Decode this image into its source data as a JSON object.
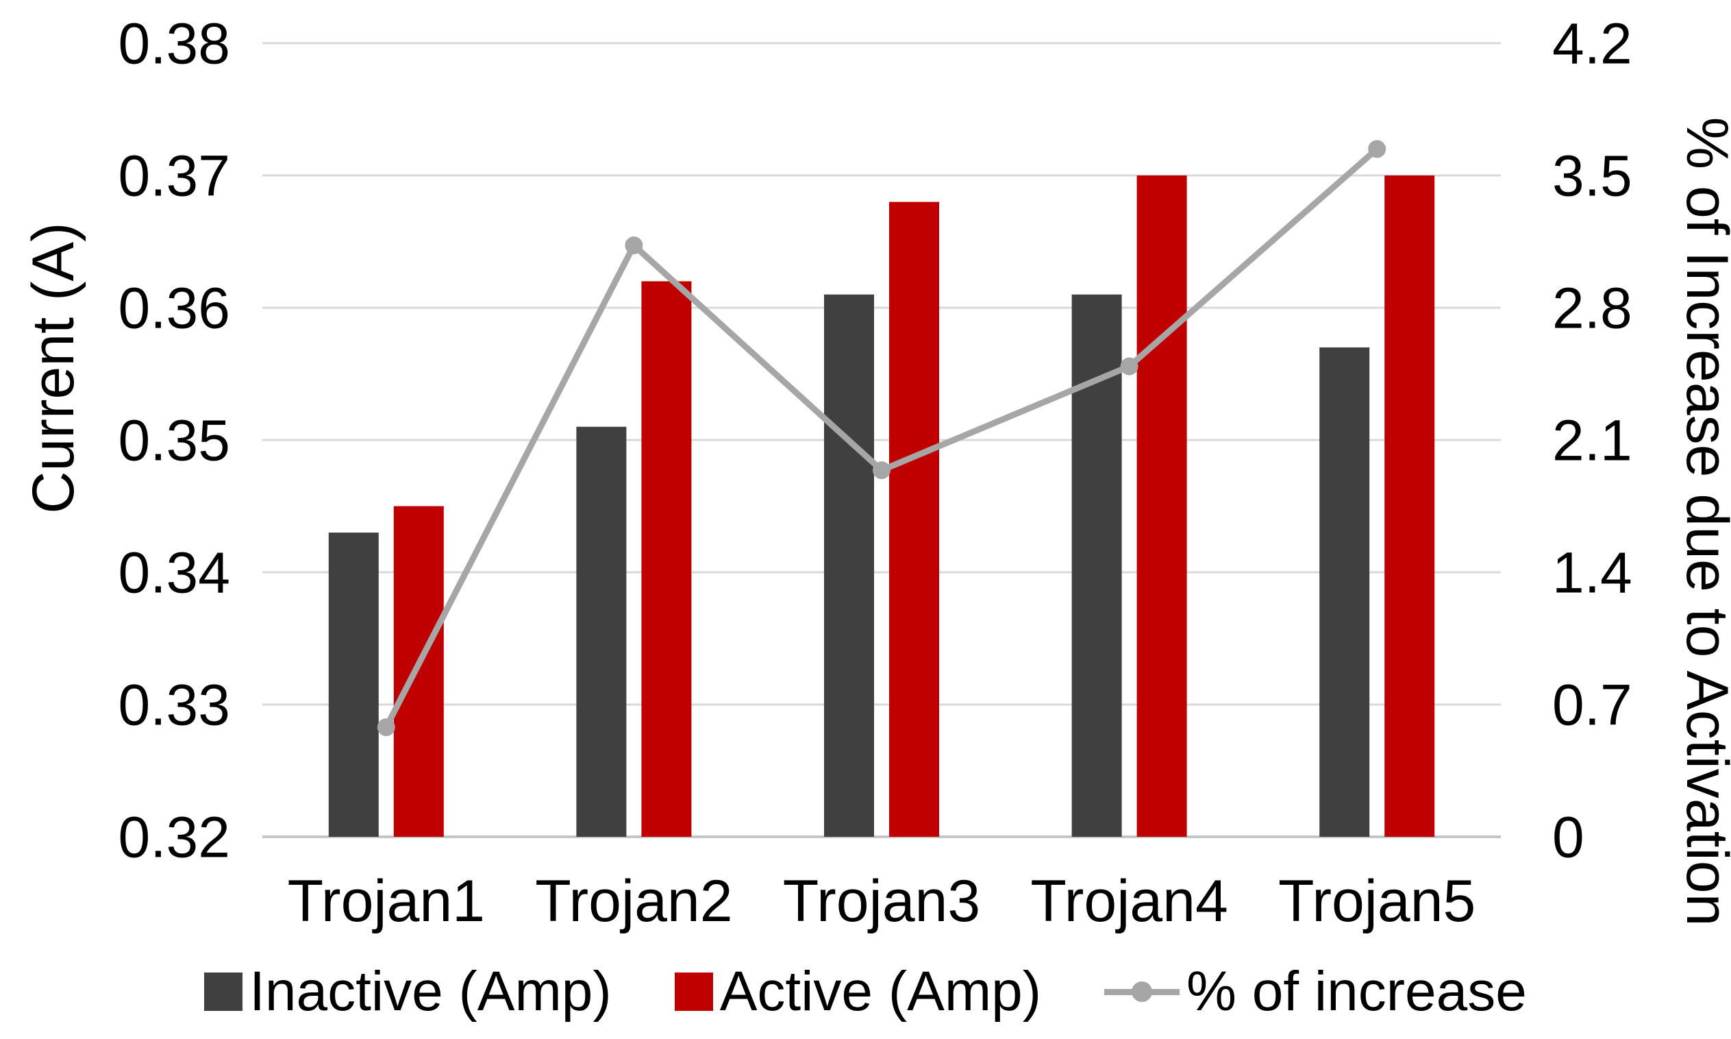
{
  "chart_data": {
    "type": "combo-bar-line",
    "categories": [
      "Trojan1",
      "Trojan2",
      "Trojan3",
      "Trojan4",
      "Trojan5"
    ],
    "series": [
      {
        "name": "Inactive (Amp)",
        "type": "bar",
        "axis": "left",
        "color": "#404040",
        "values": [
          0.343,
          0.351,
          0.361,
          0.361,
          0.357
        ]
      },
      {
        "name": "Active (Amp)",
        "type": "bar",
        "axis": "left",
        "color": "#C00000",
        "values": [
          0.345,
          0.362,
          0.368,
          0.37,
          0.37
        ]
      },
      {
        "name": "% of increase",
        "type": "line",
        "axis": "right",
        "color": "#A6A6A6",
        "values": [
          0.58,
          3.13,
          1.94,
          2.49,
          3.64
        ]
      }
    ],
    "left_axis": {
      "title": "Current (A)",
      "min": 0.32,
      "max": 0.38,
      "step": 0.01,
      "tick_labels": [
        "0.32",
        "0.33",
        "0.34",
        "0.35",
        "0.36",
        "0.37",
        "0.38"
      ]
    },
    "right_axis": {
      "title": "% of Increase due to Activation",
      "min": 0,
      "max": 4.2,
      "step": 0.7,
      "tick_labels": [
        "0",
        "0.7",
        "1.4",
        "2.1",
        "2.8",
        "3.5",
        "4.2"
      ]
    },
    "legend": {
      "position": "bottom",
      "items": [
        "Inactive (Amp)",
        "Active (Amp)",
        "% of increase"
      ]
    },
    "grid": true,
    "colors": {
      "gridline": "#D9D9D9",
      "axis_line": "#C6C6C6",
      "text": "#000000",
      "background": "#FFFFFF"
    }
  }
}
